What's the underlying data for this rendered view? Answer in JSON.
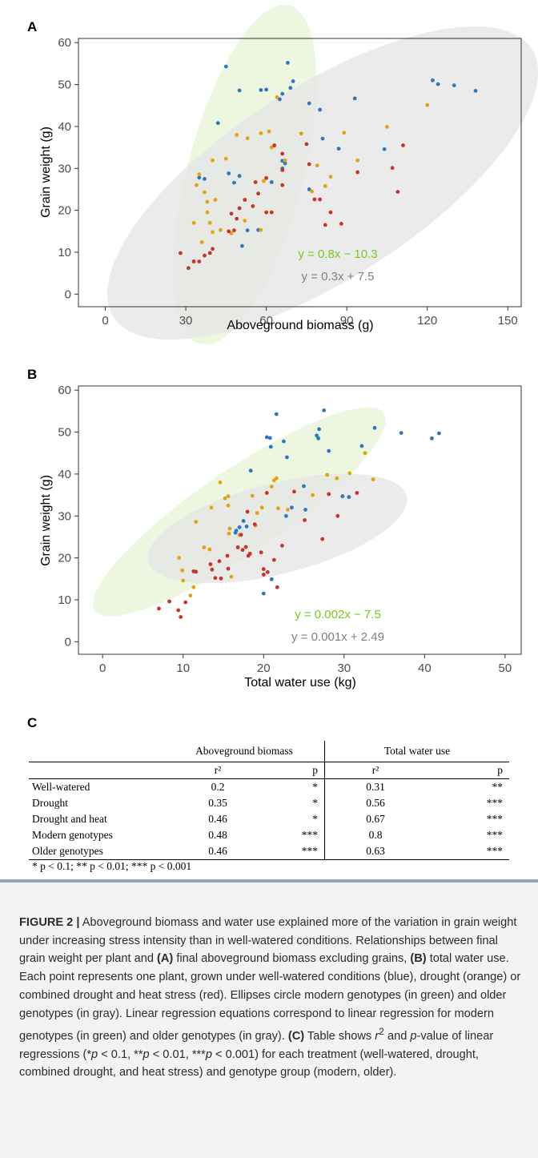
{
  "panels": {
    "a": {
      "letter": "A"
    },
    "b": {
      "letter": "B"
    },
    "c": {
      "letter": "C"
    }
  },
  "colors": {
    "well_watered": "#2a78c6",
    "drought": "#e2a310",
    "drought_heat": "#c8342a",
    "modern": "#78c81e",
    "older": "#7f7f7f",
    "modern_ellipse_fill": "#e8f5d6",
    "older_ellipse_fill": "#e6e6e6"
  },
  "chart_data": [
    {
      "type": "scatter",
      "panel": "A",
      "xlabel": "Aboveground biomass (g)",
      "ylabel": "Grain weight (g)",
      "xlim": [
        -10,
        155
      ],
      "ylim": [
        -3,
        61
      ],
      "xticks": [
        0,
        30,
        60,
        90,
        120,
        150
      ],
      "yticks": [
        0,
        10,
        20,
        30,
        40,
        50,
        60
      ],
      "ellipses": [
        {
          "group": "modern",
          "center": [
            52,
            28.5
          ],
          "rx": 44,
          "ry": 20.5,
          "angle_deg": 64
        },
        {
          "group": "older",
          "center": [
            81,
            26.5
          ],
          "rx": 85,
          "ry": 25,
          "angle_deg": 20
        }
      ],
      "equations": [
        {
          "group": "modern",
          "text": "y = 0.8x − 10.3"
        },
        {
          "group": "older",
          "text": "y = 0.3x + 7.5"
        }
      ],
      "series": [
        {
          "name": "Well-watered",
          "points": [
            [
              45,
              54.3
            ],
            [
              68,
              55.2
            ],
            [
              70,
              50.8
            ],
            [
              69,
              49.2
            ],
            [
              66,
              47.8
            ],
            [
              65,
              46.5
            ],
            [
              58,
              48.7
            ],
            [
              60,
              48.8
            ],
            [
              50,
              48.6
            ],
            [
              42,
              40.8
            ],
            [
              35,
              27.8
            ],
            [
              37,
              27.5
            ],
            [
              46,
              28.8
            ],
            [
              50,
              28.2
            ],
            [
              48,
              26.6
            ],
            [
              62,
              26.7
            ],
            [
              66,
              31.8
            ],
            [
              67,
              31.2
            ],
            [
              66,
              30
            ],
            [
              76,
              45.5
            ],
            [
              80,
              44
            ],
            [
              93,
              46.7
            ],
            [
              87,
              34.7
            ],
            [
              81,
              37.1
            ],
            [
              76,
              25
            ],
            [
              122,
              51
            ],
            [
              124,
              50.1
            ],
            [
              130,
              49.8
            ],
            [
              138,
              48.5
            ],
            [
              104,
              34.6
            ],
            [
              53,
              15.2
            ],
            [
              57,
              15.3
            ],
            [
              51,
              11.5
            ]
          ]
        },
        {
          "name": "Drought",
          "points": [
            [
              64,
              47
            ],
            [
              61,
              38.8
            ],
            [
              63,
              35.4
            ],
            [
              67,
              31.9
            ],
            [
              73,
              38.3
            ],
            [
              53,
              37.2
            ],
            [
              49,
              38
            ],
            [
              45,
              32.3
            ],
            [
              40,
              31.9
            ],
            [
              35,
              28.6
            ],
            [
              34,
              26
            ],
            [
              37,
              24.3
            ],
            [
              38,
              22
            ],
            [
              41,
              22.5
            ],
            [
              38,
              19.5
            ],
            [
              39,
              17
            ],
            [
              40,
              14.8
            ],
            [
              43,
              15.3
            ],
            [
              47,
              14.5
            ],
            [
              52,
              17.5
            ],
            [
              58,
              15.3
            ],
            [
              59,
              27
            ],
            [
              58,
              38.4
            ],
            [
              62,
              35
            ],
            [
              79,
              30.7
            ],
            [
              82,
              25.8
            ],
            [
              84,
              28
            ],
            [
              89,
              38.5
            ],
            [
              94,
              31.9
            ],
            [
              105,
              39.9
            ],
            [
              120,
              45.1
            ],
            [
              33,
              17
            ],
            [
              36,
              12.4
            ],
            [
              77,
              24.5
            ]
          ]
        },
        {
          "name": "Drought and heat",
          "points": [
            [
              28,
              9.8
            ],
            [
              31,
              6.2
            ],
            [
              33,
              7.8
            ],
            [
              35,
              7.8
            ],
            [
              37,
              9.2
            ],
            [
              39,
              9.8
            ],
            [
              40,
              10.8
            ],
            [
              46,
              15
            ],
            [
              48,
              15.2
            ],
            [
              49,
              18
            ],
            [
              47,
              19.2
            ],
            [
              50,
              20.5
            ],
            [
              52,
              22.5
            ],
            [
              55,
              21
            ],
            [
              57,
              24
            ],
            [
              56,
              26.7
            ],
            [
              60,
              19.5
            ],
            [
              62,
              19.5
            ],
            [
              60,
              27.7
            ],
            [
              66,
              26
            ],
            [
              66,
              29.6
            ],
            [
              63,
              35.5
            ],
            [
              66,
              33.5
            ],
            [
              75,
              35.8
            ],
            [
              76,
              31
            ],
            [
              78,
              22.6
            ],
            [
              80,
              22.6
            ],
            [
              84,
              19.5
            ],
            [
              88,
              16.8
            ],
            [
              94,
              29.1
            ],
            [
              107,
              30.1
            ],
            [
              109,
              24.4
            ],
            [
              111,
              35.5
            ],
            [
              82,
              16.5
            ]
          ]
        }
      ]
    },
    {
      "type": "scatter",
      "panel": "B",
      "xlabel": "Total water use (kg)",
      "ylabel": "Grain weight (g)",
      "xlim": [
        -3,
        52
      ],
      "ylim": [
        -3,
        61
      ],
      "xticks": [
        0,
        10,
        20,
        30,
        40,
        50
      ],
      "yticks": [
        0,
        10,
        20,
        30,
        40,
        50,
        60
      ],
      "ellipses": [
        {
          "group": "modern",
          "center": [
            17,
            31
          ],
          "rx": 30,
          "ry": 7.2,
          "angle_deg": 55
        },
        {
          "group": "older",
          "center": [
            21.7,
            27
          ],
          "rx": 18.3,
          "ry": 9.8,
          "angle_deg": 34
        }
      ],
      "equations": [
        {
          "group": "modern",
          "text": "y = 0.002x − 7.5"
        },
        {
          "group": "older",
          "text": "y = 0.001x + 2.49"
        }
      ],
      "series": [
        {
          "name": "Well-watered",
          "points": [
            [
              21.6,
              54.3
            ],
            [
              27.5,
              55.2
            ],
            [
              26.9,
              50.7
            ],
            [
              26.6,
              49.2
            ],
            [
              26.8,
              48.5
            ],
            [
              20.4,
              48.8
            ],
            [
              20.8,
              48.6
            ],
            [
              22.5,
              47.8
            ],
            [
              20.9,
              46.5
            ],
            [
              32.2,
              46.7
            ],
            [
              33.8,
              51
            ],
            [
              37.1,
              49.8
            ],
            [
              40.9,
              48.5
            ],
            [
              41.8,
              49.7
            ],
            [
              28.1,
              45.5
            ],
            [
              22.9,
              44
            ],
            [
              18.4,
              40.8
            ],
            [
              25,
              37.1
            ],
            [
              29.8,
              34.7
            ],
            [
              30.6,
              34.5
            ],
            [
              23.5,
              32
            ],
            [
              25.2,
              31.5
            ],
            [
              22.8,
              30
            ],
            [
              17.5,
              28.8
            ],
            [
              17.9,
              27.5
            ],
            [
              17,
              27.3
            ],
            [
              16.6,
              26.5
            ],
            [
              20,
              11.5
            ],
            [
              21,
              14.9
            ],
            [
              16.5,
              26
            ]
          ]
        },
        {
          "name": "Drought",
          "points": [
            [
              14.6,
              38
            ],
            [
              15.6,
              34.7
            ],
            [
              15.2,
              34.2
            ],
            [
              15.6,
              32.5
            ],
            [
              13.5,
              32
            ],
            [
              11.6,
              28.6
            ],
            [
              12.6,
              22.5
            ],
            [
              13.3,
              22
            ],
            [
              9.5,
              20
            ],
            [
              9.9,
              17
            ],
            [
              10,
              14.6
            ],
            [
              11.3,
              13
            ],
            [
              10.9,
              11
            ],
            [
              15.7,
              25.8
            ],
            [
              15.8,
              27
            ],
            [
              17,
              25.5
            ],
            [
              19,
              27.7
            ],
            [
              19.2,
              30.7
            ],
            [
              19.8,
              32
            ],
            [
              21,
              37
            ],
            [
              21.3,
              38.5
            ],
            [
              21.6,
              39
            ],
            [
              21.8,
              31.8
            ],
            [
              18.6,
              34.8
            ],
            [
              26.1,
              35
            ],
            [
              27.9,
              39.8
            ],
            [
              29.1,
              39
            ],
            [
              30.7,
              40.2
            ],
            [
              32.6,
              45
            ],
            [
              33.6,
              38.7
            ],
            [
              23,
              31.5
            ],
            [
              16,
              15.5
            ]
          ]
        },
        {
          "name": "Drought and heat",
          "points": [
            [
              7,
              7.9
            ],
            [
              8.3,
              9.6
            ],
            [
              9.4,
              7.5
            ],
            [
              9.7,
              5.9
            ],
            [
              10.3,
              9.4
            ],
            [
              11.3,
              16.8
            ],
            [
              11.6,
              16.7
            ],
            [
              13.4,
              18.5
            ],
            [
              13.6,
              17.2
            ],
            [
              14,
              15.2
            ],
            [
              14.5,
              19.2
            ],
            [
              14.7,
              15.1
            ],
            [
              15.5,
              20.5
            ],
            [
              15.6,
              17.4
            ],
            [
              16.8,
              22.5
            ],
            [
              17.2,
              25.5
            ],
            [
              17.4,
              21.9
            ],
            [
              17.8,
              22.6
            ],
            [
              18.1,
              20.5
            ],
            [
              18.3,
              21
            ],
            [
              18.9,
              28
            ],
            [
              19.7,
              21.3
            ],
            [
              20,
              17.3
            ],
            [
              20,
              16
            ],
            [
              20.4,
              35.5
            ],
            [
              20.5,
              16.6
            ],
            [
              21.3,
              19.5
            ],
            [
              22.3,
              22.9
            ],
            [
              23.8,
              35.8
            ],
            [
              25.1,
              29
            ],
            [
              27.3,
              24.5
            ],
            [
              28.1,
              35.2
            ],
            [
              29.2,
              30
            ],
            [
              31.6,
              35.5
            ],
            [
              18,
              31
            ],
            [
              21.7,
              13
            ]
          ]
        }
      ]
    }
  ],
  "table": {
    "headers": [
      "Aboveground biomass",
      "Total water use"
    ],
    "subheaders": [
      "r²",
      "p",
      "r²",
      "p"
    ],
    "rows": [
      {
        "label": "Well-watered",
        "r2_a": "0.2",
        "p_a": "*",
        "r2_b": "0.31",
        "p_b": "**"
      },
      {
        "label": "Drought",
        "r2_a": "0.35",
        "p_a": "*",
        "r2_b": "0.56",
        "p_b": "***"
      },
      {
        "label": "Drought and heat",
        "r2_a": "0.46",
        "p_a": "*",
        "r2_b": "0.67",
        "p_b": "***"
      },
      {
        "label": "Modern genotypes",
        "r2_a": "0.48",
        "p_a": "***",
        "r2_b": "0.8",
        "p_b": "***"
      },
      {
        "label": "Older genotypes",
        "r2_a": "0.46",
        "p_a": "***",
        "r2_b": "0.63",
        "p_b": "***"
      }
    ],
    "note": "* p < 0.1; ** p < 0.01; *** p < 0.001"
  },
  "caption": {
    "label": "FIGURE 2 |",
    "s1": " Aboveground biomass and water use explained more of the variation in grain weight under increasing stress intensity than in well-watered conditions. Relationships between final grain weight per plant and ",
    "ref_a1": "(A)",
    "s2": " final aboveground biomass excluding grains, ",
    "ref_b": "(B)",
    "s3": " total water use. Each point represents one plant, grown under well-watered conditions (blue), drought (orange) or combined drought and heat stress (red). Ellipses circle modern genotypes (in green) and older genotypes (in gray). Linear regression equations correspond to linear regression for modern genotypes (in green) and older genotypes (in gray). ",
    "ref_c": "(C)",
    "s4": " Table shows ",
    "r2_sym": "r",
    "r2_sup": "2",
    "s5": " and ",
    "p_sym": "p",
    "s6": "-value of linear regressions (*",
    "p1": "p",
    "s7": " < 0.1, **",
    "p2": "p",
    "s8": " < 0.01, ***",
    "p3": "p",
    "s9": " < 0.001) for each treatment (well-watered, drought, combined drought, and heat stress) and genotype group (modern, older)."
  }
}
